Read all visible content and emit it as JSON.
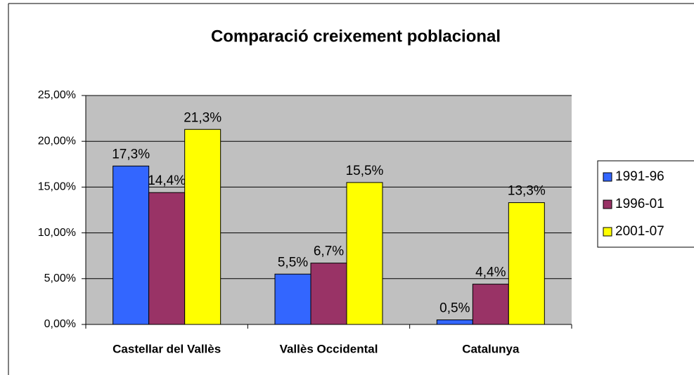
{
  "chart_data": {
    "type": "bar",
    "title": "Comparació creixement poblacional",
    "categories": [
      "Castellar del Vallès",
      "Vallès Occidental",
      "Catalunya"
    ],
    "series": [
      {
        "name": "1991-96",
        "color": "#3366ff",
        "values": [
          17.3,
          5.5,
          0.5
        ],
        "value_labels": [
          "17,3%",
          "5,5%",
          "0,5%"
        ]
      },
      {
        "name": "1996-01",
        "color": "#993366",
        "values": [
          14.4,
          6.7,
          4.4
        ],
        "value_labels": [
          "14,4%",
          "6,7%",
          "4,4%"
        ]
      },
      {
        "name": "2001-07",
        "color": "#ffff00",
        "values": [
          21.3,
          15.5,
          13.3
        ],
        "value_labels": [
          "21,3%",
          "15,5%",
          "13,3%"
        ]
      }
    ],
    "ylim": [
      0,
      25
    ],
    "yticks": [
      {
        "value": 0,
        "label": "0,00%"
      },
      {
        "value": 5,
        "label": "5,00%"
      },
      {
        "value": 10,
        "label": "10,00%"
      },
      {
        "value": 15,
        "label": "15,00%"
      },
      {
        "value": 20,
        "label": "20,00%"
      },
      {
        "value": 25,
        "label": "25,00%"
      }
    ],
    "grid": true,
    "legend": "right"
  }
}
